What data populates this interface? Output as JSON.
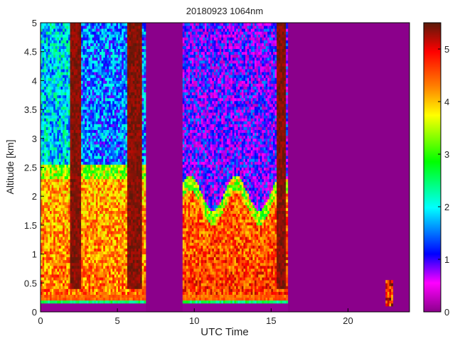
{
  "chart_data": {
    "type": "heatmap",
    "title": "20180923 1064nm",
    "xlabel": "UTC Time",
    "ylabel": "Altitude [km]",
    "xlim": [
      0,
      24
    ],
    "ylim": [
      0,
      5
    ],
    "x_ticks": [
      "0",
      "5",
      "10",
      "15",
      "20"
    ],
    "y_ticks": [
      "0",
      "0.5",
      "1",
      "1.5",
      "2",
      "2.5",
      "3",
      "3.5",
      "4",
      "4.5",
      "5"
    ],
    "colorbar": {
      "range": [
        0,
        5.5
      ],
      "ticks": [
        "0",
        "1",
        "2",
        "3",
        "4",
        "5"
      ],
      "colormap": [
        "#8b008b",
        "#ff00ff",
        "#0000ff",
        "#00ffff",
        "#00ff00",
        "#ffff00",
        "#ff7f00",
        "#ff0000",
        "#5a1a0a"
      ]
    },
    "background_color": "#8b008b",
    "data_intervals_utc": [
      [
        0,
        6.9
      ],
      [
        9.2,
        16.1
      ],
      [
        22.5,
        22.9
      ]
    ],
    "features": {
      "low_layer_top_km": 2.3,
      "dense_cloud_intervals_utc": [
        [
          1.9,
          2.7
        ],
        [
          5.6,
          6.6
        ],
        [
          15.3,
          16.0
        ]
      ]
    }
  }
}
